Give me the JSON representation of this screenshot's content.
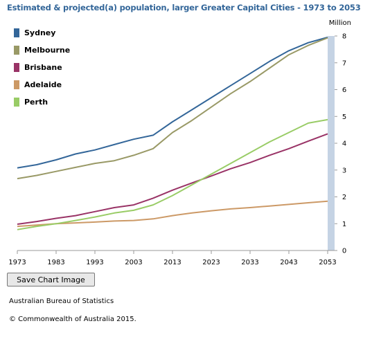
{
  "chart_data": {
    "type": "line",
    "title": "Estimated & projected(a) population, larger Greater Capital Cities - 1973 to 2053",
    "ylabel": "Million",
    "xlabel": "",
    "xlim": [
      1973,
      2053
    ],
    "ylim": [
      0,
      8
    ],
    "x_ticks": [
      1973,
      1983,
      1993,
      2003,
      2013,
      2023,
      2033,
      2043,
      2053
    ],
    "y_ticks": [
      0,
      1,
      2,
      3,
      4,
      5,
      6,
      7,
      8
    ],
    "grid": false,
    "legend": "top-left",
    "series": [
      {
        "name": "Sydney",
        "color": "#336699",
        "x": [
          1973,
          1978,
          1983,
          1988,
          1993,
          1998,
          2003,
          2008,
          2013,
          2018,
          2023,
          2028,
          2033,
          2038,
          2043,
          2048,
          2053
        ],
        "values": [
          3.08,
          3.2,
          3.38,
          3.6,
          3.75,
          3.95,
          4.15,
          4.3,
          4.8,
          5.25,
          5.7,
          6.15,
          6.6,
          7.05,
          7.45,
          7.75,
          7.95
        ]
      },
      {
        "name": "Melbourne",
        "color": "#999966",
        "x": [
          1973,
          1978,
          1983,
          1988,
          1993,
          1998,
          2003,
          2008,
          2013,
          2018,
          2023,
          2028,
          2033,
          2038,
          2043,
          2048,
          2053
        ],
        "values": [
          2.68,
          2.8,
          2.95,
          3.1,
          3.25,
          3.35,
          3.55,
          3.8,
          4.4,
          4.85,
          5.35,
          5.85,
          6.3,
          6.8,
          7.3,
          7.65,
          7.93
        ]
      },
      {
        "name": "Brisbane",
        "color": "#993366",
        "x": [
          1973,
          1978,
          1983,
          1988,
          1993,
          1998,
          2003,
          2008,
          2013,
          2018,
          2023,
          2028,
          2033,
          2038,
          2043,
          2048,
          2053
        ],
        "values": [
          0.98,
          1.08,
          1.2,
          1.3,
          1.45,
          1.6,
          1.7,
          1.95,
          2.25,
          2.52,
          2.78,
          3.05,
          3.28,
          3.55,
          3.8,
          4.08,
          4.35
        ]
      },
      {
        "name": "Adelaide",
        "color": "#cc9966",
        "x": [
          1973,
          1978,
          1983,
          1988,
          1993,
          1998,
          2003,
          2008,
          2013,
          2018,
          2023,
          2028,
          2033,
          2038,
          2043,
          2048,
          2053
        ],
        "values": [
          0.9,
          0.95,
          1.0,
          1.03,
          1.06,
          1.1,
          1.12,
          1.18,
          1.3,
          1.4,
          1.48,
          1.55,
          1.6,
          1.66,
          1.72,
          1.78,
          1.84
        ]
      },
      {
        "name": "Perth",
        "color": "#99cc66",
        "x": [
          1973,
          1978,
          1983,
          1988,
          1993,
          1998,
          2003,
          2008,
          2013,
          2018,
          2023,
          2028,
          2033,
          2038,
          2043,
          2048,
          2053
        ],
        "values": [
          0.78,
          0.9,
          1.0,
          1.12,
          1.25,
          1.4,
          1.5,
          1.7,
          2.05,
          2.45,
          2.85,
          3.25,
          3.65,
          4.05,
          4.4,
          4.75,
          4.88
        ]
      }
    ]
  },
  "ui": {
    "save_button": "Save Chart Image",
    "source": "Australian Bureau of Statistics",
    "copyright": "© Commonwealth of Australia 2015."
  }
}
